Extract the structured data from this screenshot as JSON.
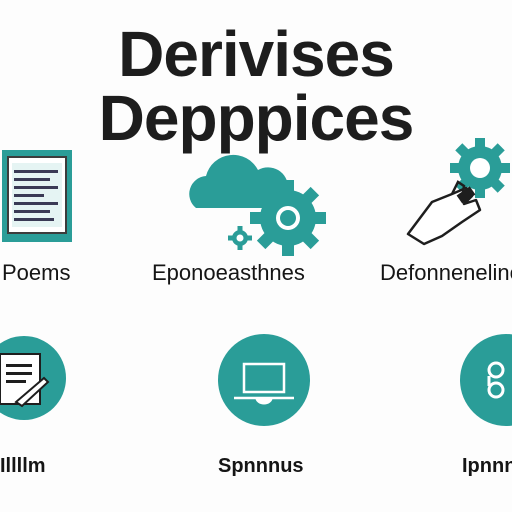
{
  "title": "Derivises Depppices",
  "accent": "#2a9d98",
  "items": [
    {
      "icon": "document-list-icon",
      "label": "Poems"
    },
    {
      "icon": "cloud-gears-icon",
      "label": "Eponoeasthnes"
    },
    {
      "icon": "hand-gear-icon",
      "label": "Defonneneline"
    },
    {
      "icon": "document-pen-circle-icon",
      "label": "Illllm"
    },
    {
      "icon": "laptop-circle-icon",
      "label": "Spnnnus"
    },
    {
      "icon": "link-circle-icon",
      "label": "Ipnnn"
    }
  ]
}
